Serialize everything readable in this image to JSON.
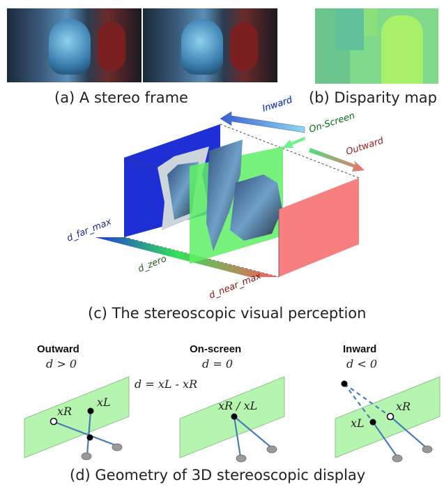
{
  "captions": {
    "a": "(a) A stereo frame",
    "b": "(b) Disparity map",
    "c": "(c) The stereoscopic visual perception",
    "d": "(d) Geometry of 3D stereoscopic display"
  },
  "perception": {
    "inward": "Inward",
    "on_screen": "On-Screen",
    "outward": "Outward",
    "d_far_max": "d_far_max",
    "d_zero": "d_zero",
    "d_near_max": "d_near_max"
  },
  "geometry": {
    "outward": {
      "title": "Outward",
      "condition": "d > 0"
    },
    "onscreen": {
      "title": "On-screen",
      "condition": "d = 0"
    },
    "inward": {
      "title": "Inward",
      "condition": "d < 0"
    },
    "formula": "d = xL - xR",
    "xL": "xL",
    "xR": "xR",
    "xR_xL": "xR / xL"
  },
  "colors": {
    "blue_plane": "#1f2fd6",
    "green_plane": "#5ef065",
    "red_plane": "#f77f7f",
    "light_green": "#b6f5b0",
    "line_blue": "#4a7ab8"
  }
}
